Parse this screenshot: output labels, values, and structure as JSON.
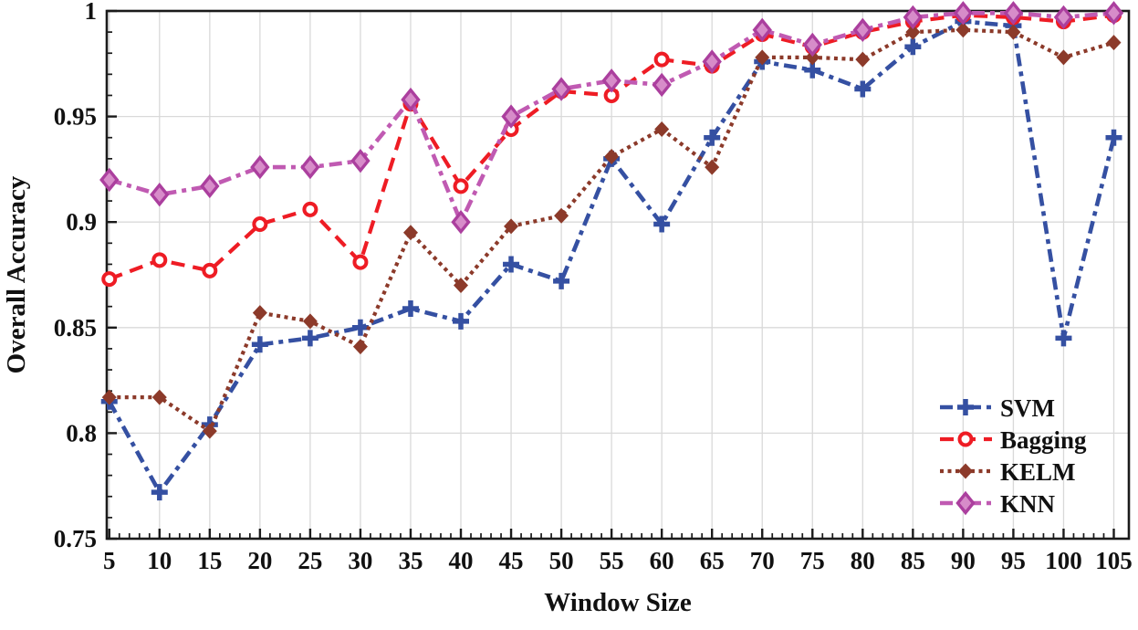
{
  "figure": {
    "background": "#ffffff",
    "grid_color": "#d9d9d9",
    "axis_color": "#1a1a1a"
  },
  "chart_data": {
    "type": "line",
    "title": "",
    "xlabel": "Window Size",
    "ylabel": "Overall Accuracy",
    "x": [
      5,
      10,
      15,
      20,
      25,
      30,
      35,
      40,
      45,
      50,
      55,
      60,
      65,
      70,
      75,
      80,
      85,
      90,
      95,
      100,
      105
    ],
    "xticks": [
      5,
      10,
      15,
      20,
      25,
      30,
      35,
      40,
      45,
      50,
      55,
      60,
      65,
      70,
      75,
      80,
      85,
      90,
      95,
      100,
      105
    ],
    "yticks": [
      0.75,
      0.8,
      0.85,
      0.9,
      0.95,
      1
    ],
    "ytick_labels": [
      "0.75",
      "0.8",
      "0.85",
      "0.9",
      "0.95",
      "1"
    ],
    "xlim": [
      4.75,
      106.5
    ],
    "ylim": [
      0.75,
      1.0
    ],
    "grid": true,
    "legend_position": "inside-lower-right",
    "series": [
      {
        "name": "SVM",
        "color": "#3550a2",
        "marker": "plus",
        "line_style": "dash-dot",
        "values": [
          0.815,
          0.772,
          0.804,
          0.842,
          0.845,
          0.85,
          0.859,
          0.853,
          0.88,
          0.872,
          0.93,
          0.899,
          0.94,
          0.976,
          0.972,
          0.963,
          0.983,
          0.995,
          0.993,
          0.845,
          0.94
        ]
      },
      {
        "name": "Bagging",
        "color": "#ee1c24",
        "marker": "open-circle",
        "line_style": "dashed",
        "values": [
          0.873,
          0.882,
          0.877,
          0.899,
          0.906,
          0.881,
          0.956,
          0.917,
          0.944,
          0.962,
          0.96,
          0.977,
          0.974,
          0.989,
          0.983,
          0.99,
          0.995,
          0.998,
          0.997,
          0.995,
          0.998
        ]
      },
      {
        "name": "KELM",
        "color": "#8c3a2a",
        "marker": "filled-diamond",
        "line_style": "dotted",
        "values": [
          0.817,
          0.817,
          0.801,
          0.857,
          0.853,
          0.841,
          0.895,
          0.87,
          0.898,
          0.903,
          0.931,
          0.944,
          0.926,
          0.978,
          0.978,
          0.977,
          0.99,
          0.991,
          0.99,
          0.978,
          0.985
        ]
      },
      {
        "name": "KNN",
        "color": "#c05ab2",
        "marker": "open-diamond",
        "line_style": "dash-dot",
        "marker_fill": "#d78cc9",
        "marker_stroke": "#ab3f9e",
        "values": [
          0.92,
          0.913,
          0.917,
          0.926,
          0.926,
          0.929,
          0.958,
          0.9,
          0.95,
          0.963,
          0.967,
          0.965,
          0.976,
          0.991,
          0.984,
          0.991,
          0.997,
          0.999,
          0.999,
          0.997,
          0.999
        ]
      }
    ]
  }
}
